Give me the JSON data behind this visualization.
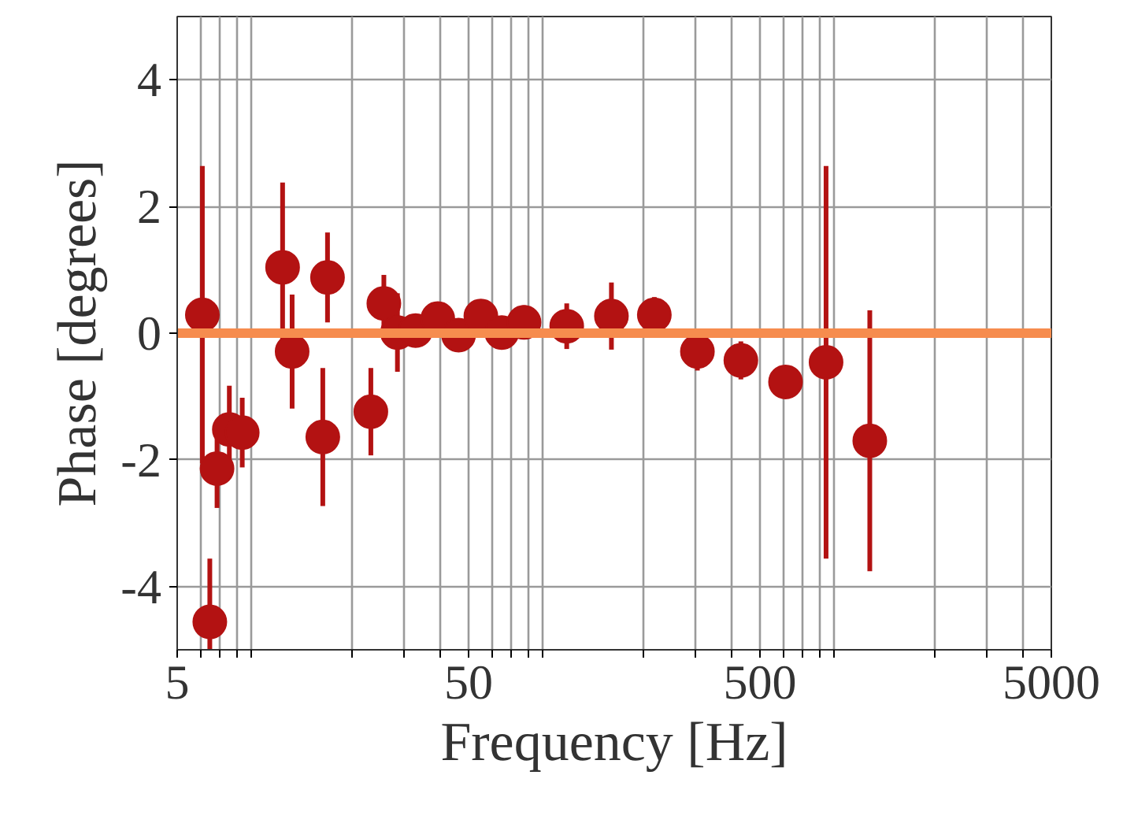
{
  "chart_data": {
    "type": "scatter",
    "xlabel": "Frequency [Hz]",
    "ylabel": "Phase [degrees]",
    "x": [
      6.1,
      6.47,
      6.85,
      7.55,
      8.36,
      11.5,
      12.4,
      15.8,
      16.4,
      23.1,
      25.6,
      28.5,
      32.9,
      39.2,
      46.2,
      55.1,
      65,
      77.5,
      108.6,
      154.6,
      217,
      305,
      430,
      612,
      843,
      1191
    ],
    "series": [
      {
        "color": "#b31212",
        "values": [
          0.29,
          -4.56,
          -2.14,
          -1.52,
          -1.57,
          1.04,
          -0.29,
          -1.64,
          0.88,
          -1.24,
          0.47,
          0.01,
          0.04,
          0.23,
          -0.03,
          0.27,
          0.01,
          0.17,
          0.11,
          0.27,
          0.29,
          -0.29,
          -0.43,
          -0.77,
          -0.46,
          -1.7
        ],
        "errors": [
          2.35,
          1.0,
          0.62,
          0.69,
          0.55,
          1.34,
          0.9,
          1.09,
          0.71,
          0.69,
          0.45,
          0.62,
          0.2,
          0.2,
          0.15,
          0.2,
          0.15,
          0.27,
          0.36,
          0.53,
          0.28,
          0.3,
          0.3,
          0.25,
          3.1,
          2.06
        ]
      }
    ],
    "xlim": [
      5,
      5000
    ],
    "ylim": [
      -5,
      5
    ],
    "xticks": [
      5,
      {
        "value": 6,
        "label": null
      },
      {
        "value": 7,
        "label": null
      },
      {
        "value": 8,
        "label": null
      },
      {
        "value": 9,
        "label": null
      },
      {
        "value": 20,
        "label": null
      },
      {
        "value": 30,
        "label": null
      },
      {
        "value": 40,
        "label": null
      },
      50,
      {
        "value": 60,
        "label": null
      },
      {
        "value": 70,
        "label": null
      },
      {
        "value": 80,
        "label": null
      },
      {
        "value": 90,
        "label": null
      },
      {
        "value": 200,
        "label": null
      },
      {
        "value": 300,
        "label": null
      },
      {
        "value": 400,
        "label": null
      },
      500,
      {
        "value": 600,
        "label": null
      },
      {
        "value": 700,
        "label": null
      },
      {
        "value": 800,
        "label": null
      },
      {
        "value": 900,
        "label": null
      },
      {
        "value": 2000,
        "label": null
      },
      {
        "value": 3000,
        "label": null
      },
      {
        "value": 4000,
        "label": null
      },
      5000
    ],
    "yticks": [
      -4,
      -2,
      0,
      2,
      4
    ],
    "ref_lines": [
      {
        "axis": "y",
        "value": 0,
        "color": "#f68c4e"
      }
    ],
    "grid": true,
    "log": "x",
    "marker": "circle"
  }
}
